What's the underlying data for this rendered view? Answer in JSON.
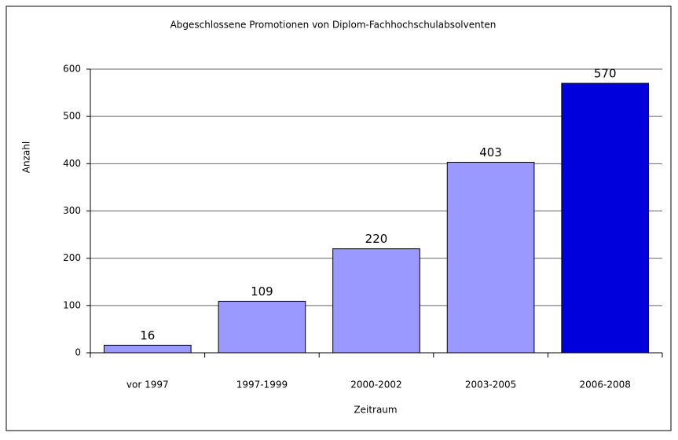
{
  "chart_data": {
    "type": "bar",
    "title": "Abgeschlossene Promotionen von Diplom-Fachhochschulabsolventen",
    "x_label": "Zeitraum",
    "y_label": "Anzahl",
    "categories": [
      "vor 1997",
      "1997-1999",
      "2000-2002",
      "2003-2005",
      "2006-2008"
    ],
    "values": [
      16,
      109,
      220,
      403,
      570
    ],
    "colors": [
      "#9999ff",
      "#9999ff",
      "#9999ff",
      "#9999ff",
      "#0000dd"
    ],
    "ylim": [
      0,
      600
    ],
    "yticks": [
      0,
      100,
      200,
      300,
      400,
      500,
      600
    ],
    "grid": true
  }
}
